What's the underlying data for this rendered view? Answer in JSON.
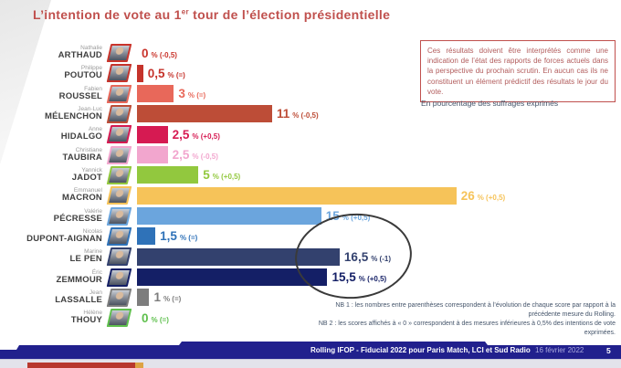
{
  "colors": {
    "accent": "#c0504d",
    "footer_bar": "#21208d",
    "footnote_text": "#44546a",
    "annotation_circle": "#3a3a3a"
  },
  "title": {
    "prefix": "L’intention de vote au 1",
    "sup": "er",
    "suffix": " tour de l’élection présidentielle"
  },
  "note_box": "Ces résultats doivent être interprétés comme une indication de l’état des rapports de forces actuels dans la perspective du prochain scrutin. En aucun cas ils ne constituent un élément prédictif des résultats le jour du vote.",
  "unit_label": "En pourcentage des suffrages exprimés",
  "footnotes": {
    "nb1": "NB 1 : les nombres entre parenthèses correspondent à l’évolution de chaque score par rapport à la précédente mesure du Rolling.",
    "nb2": "NB 2 : les scores affichés à « 0 » correspondent à des mesures inférieures à 0,5% des intentions de vote exprimées."
  },
  "footer": {
    "source": "Rolling IFOP - Fiducial 2022 pour Paris Match, LCI et Sud Radio",
    "date": "16 février 2022",
    "page": "5"
  },
  "chart_data": {
    "type": "bar",
    "orientation": "horizontal",
    "title": "L’intention de vote au 1er tour de l’élection présidentielle",
    "xlabel": "En pourcentage des suffrages exprimés",
    "xlim": [
      0,
      26
    ],
    "grid": false,
    "percent_suffix": "%",
    "annotation": "hand-drawn circle highlighting LE PEN and ZEMMOUR scores",
    "candidates": [
      {
        "first": "Nathalie",
        "last": "ARTHAUD",
        "value": 0,
        "value_label": "0",
        "change": "(-0,5)",
        "color": "#c9342b"
      },
      {
        "first": "Philippe",
        "last": "POUTOU",
        "value": 0.5,
        "value_label": "0,5",
        "change": "(=)",
        "color": "#c5332b"
      },
      {
        "first": "Fabien",
        "last": "ROUSSEL",
        "value": 3,
        "value_label": "3",
        "change": "(=)",
        "color": "#e8685a"
      },
      {
        "first": "Jean-Luc",
        "last": "MÉLENCHON",
        "value": 11,
        "value_label": "11",
        "change": "(-0,5)",
        "color": "#bd4d37"
      },
      {
        "first": "Anne",
        "last": "HIDALGO",
        "value": 2.5,
        "value_label": "2,5",
        "change": "(+0,5)",
        "color": "#d61a52"
      },
      {
        "first": "Christiane",
        "last": "TAUBIRA",
        "value": 2.5,
        "value_label": "2,5",
        "change": "(-0,5)",
        "color": "#f2a6ce"
      },
      {
        "first": "Yannick",
        "last": "JADOT",
        "value": 5,
        "value_label": "5",
        "change": "(+0,5)",
        "color": "#92c83e"
      },
      {
        "first": "Emmanuel",
        "last": "MACRON",
        "value": 26,
        "value_label": "26",
        "change": "(+0,5)",
        "color": "#f6c359"
      },
      {
        "first": "Valérie",
        "last": "PÉCRESSE",
        "value": 15,
        "value_label": "15",
        "change": "(+0,5)",
        "color": "#6ba5dd"
      },
      {
        "first": "Nicolas",
        "last": "DUPONT-AIGNAN",
        "value": 1.5,
        "value_label": "1,5",
        "change": "(=)",
        "color": "#2f72b8"
      },
      {
        "first": "Marine",
        "last": "LE PEN",
        "value": 16.5,
        "value_label": "16,5",
        "change": "(-1)",
        "color": "#33416e"
      },
      {
        "first": "Éric",
        "last": "ZEMMOUR",
        "value": 15.5,
        "value_label": "15,5",
        "change": "(+0,5)",
        "color": "#141f66"
      },
      {
        "first": "Jean",
        "last": "LASSALLE",
        "value": 1,
        "value_label": "1",
        "change": "(=)",
        "color": "#7d7d7d"
      },
      {
        "first": "Hélène",
        "last": "THOUY",
        "value": 0,
        "value_label": "0",
        "change": "(=)",
        "color": "#5fc04d"
      }
    ]
  }
}
